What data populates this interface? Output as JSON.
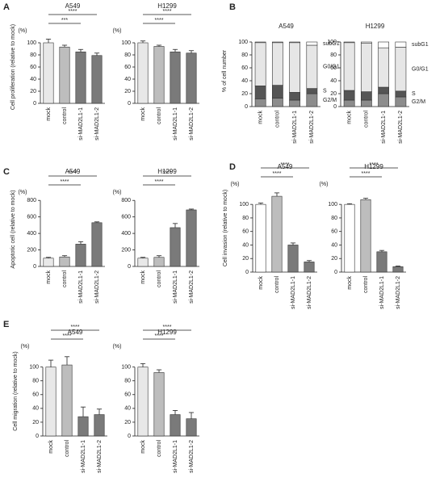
{
  "panels": [
    "A",
    "B",
    "C",
    "D",
    "E"
  ],
  "chart_data": [
    {
      "type": "bar",
      "title": "A549",
      "unit": "(%)",
      "ylabel": "Cell proliferation (relative to mock)",
      "categories": [
        "mock",
        "control",
        "si-MAD2L1-1",
        "si-MAD2L1-2"
      ],
      "values": [
        100,
        93,
        85,
        79
      ],
      "errors": [
        6,
        3,
        4,
        4
      ],
      "colors": [
        "#e8e8e8",
        "#bdbdbd",
        "#7a7a7a",
        "#7a7a7a"
      ],
      "ylim": [
        0,
        120
      ],
      "yticks": [
        0,
        20,
        40,
        60,
        80,
        100
      ],
      "significance": [
        {
          "from": "mock",
          "to": "si-MAD2L1-1",
          "label": "***"
        },
        {
          "from": "mock",
          "to": "si-MAD2L1-2",
          "label": "****"
        }
      ]
    },
    {
      "type": "bar",
      "title": "H1299",
      "unit": "(%)",
      "categories": [
        "mock",
        "control",
        "si-MAD2L1-1",
        "si-MAD2L1-2"
      ],
      "values": [
        100,
        94,
        85,
        83
      ],
      "errors": [
        3,
        2,
        4,
        4
      ],
      "colors": [
        "#e8e8e8",
        "#bdbdbd",
        "#7a7a7a",
        "#7a7a7a"
      ],
      "ylim": [
        0,
        120
      ],
      "yticks": [
        0,
        20,
        40,
        60,
        80,
        100
      ],
      "significance": [
        {
          "from": "mock",
          "to": "si-MAD2L1-1",
          "label": "****"
        },
        {
          "from": "mock",
          "to": "si-MAD2L1-2",
          "label": "****"
        }
      ]
    },
    {
      "type": "stacked_bar",
      "title": "A549",
      "ylabel": "% of cell number",
      "categories": [
        "mock",
        "control",
        "si-MAD2L1-1",
        "si-MAD2L1-2"
      ],
      "series": [
        {
          "name": "G2/M",
          "color": "#8c8c8c",
          "values": [
            12,
            13,
            10,
            20
          ]
        },
        {
          "name": "S",
          "color": "#555555",
          "values": [
            20,
            20,
            12,
            8
          ]
        },
        {
          "name": "G0/G1",
          "color": "#e6e6e6",
          "values": [
            67,
            66,
            77,
            67
          ]
        },
        {
          "name": "subG1",
          "color": "#ffffff",
          "values": [
            1,
            1,
            1,
            5
          ]
        }
      ],
      "ylim": [
        0,
        110
      ],
      "yticks": [
        0,
        20,
        40,
        60,
        80,
        100
      ]
    },
    {
      "type": "stacked_bar",
      "title": "H1299",
      "categories": [
        "mock",
        "control",
        "si-MAD2L1-1",
        "si-MAD2L1-2"
      ],
      "series": [
        {
          "name": "G2/M",
          "color": "#8c8c8c",
          "values": [
            10,
            10,
            20,
            15
          ]
        },
        {
          "name": "S",
          "color": "#555555",
          "values": [
            15,
            13,
            10,
            9
          ]
        },
        {
          "name": "G0/G1",
          "color": "#e6e6e6",
          "values": [
            74,
            75,
            61,
            68
          ]
        },
        {
          "name": "subG1",
          "color": "#ffffff",
          "values": [
            1,
            2,
            9,
            8
          ]
        }
      ],
      "ylim": [
        0,
        110
      ],
      "yticks": [
        0,
        20,
        40,
        60,
        80,
        100
      ]
    },
    {
      "type": "bar",
      "title": "A549",
      "unit": "(%)",
      "ylabel": "Apoptotic cell (relative to mock)",
      "categories": [
        "mock",
        "control",
        "si-MAD2L1-1",
        "si-MAD2L1-2"
      ],
      "values": [
        100,
        115,
        270,
        530
      ],
      "errors": [
        10,
        15,
        30,
        10
      ],
      "colors": [
        "#e8e8e8",
        "#bdbdbd",
        "#7a7a7a",
        "#7a7a7a"
      ],
      "ylim": [
        0,
        900
      ],
      "yticks": [
        0,
        200,
        400,
        600,
        800
      ],
      "significance": [
        {
          "from": "mock",
          "to": "si-MAD2L1-1",
          "label": "****"
        },
        {
          "from": "mock",
          "to": "si-MAD2L1-2",
          "label": "****"
        }
      ]
    },
    {
      "type": "bar",
      "title": "H1299",
      "unit": "(%)",
      "categories": [
        "mock",
        "control",
        "si-MAD2L1-1",
        "si-MAD2L1-2"
      ],
      "values": [
        100,
        110,
        470,
        685
      ],
      "errors": [
        10,
        20,
        50,
        10
      ],
      "colors": [
        "#e8e8e8",
        "#bdbdbd",
        "#7a7a7a",
        "#7a7a7a"
      ],
      "ylim": [
        0,
        900
      ],
      "yticks": [
        0,
        200,
        400,
        600,
        800
      ],
      "significance": [
        {
          "from": "mock",
          "to": "si-MAD2L1-1",
          "label": "****"
        },
        {
          "from": "mock",
          "to": "si-MAD2L1-2",
          "label": "****"
        }
      ]
    },
    {
      "type": "bar",
      "title": "A549",
      "unit": "(%)",
      "ylabel": "Cell invasion (relative to mock)",
      "categories": [
        "mock",
        "control",
        "si-MAD2L1-1",
        "si-MAD2L1-2"
      ],
      "values": [
        100,
        112,
        40,
        15
      ],
      "errors": [
        2,
        5,
        3,
        2
      ],
      "colors": [
        "#ffffff",
        "#bdbdbd",
        "#7a7a7a",
        "#7a7a7a"
      ],
      "ylim": [
        0,
        130
      ],
      "yticks": [
        0,
        20,
        40,
        60,
        80,
        100
      ],
      "significance": [
        {
          "from": "mock",
          "to": "si-MAD2L1-1",
          "label": "****"
        },
        {
          "from": "mock",
          "to": "si-MAD2L1-2",
          "label": "****"
        }
      ]
    },
    {
      "type": "bar",
      "title": "H1299",
      "unit": "(%)",
      "categories": [
        "mock",
        "control",
        "si-MAD2L1-1",
        "si-MAD2L1-2"
      ],
      "values": [
        100,
        107,
        30,
        8
      ],
      "errors": [
        1,
        2,
        2,
        1
      ],
      "colors": [
        "#ffffff",
        "#bdbdbd",
        "#7a7a7a",
        "#7a7a7a"
      ],
      "ylim": [
        0,
        130
      ],
      "yticks": [
        0,
        20,
        40,
        60,
        80,
        100
      ],
      "significance": [
        {
          "from": "mock",
          "to": "si-MAD2L1-1",
          "label": "****"
        },
        {
          "from": "mock",
          "to": "si-MAD2L1-2",
          "label": "****"
        }
      ]
    },
    {
      "type": "bar",
      "title": "A549",
      "unit": "(%)",
      "ylabel": "Cell migration (relative to mock)",
      "categories": [
        "mock",
        "control",
        "si-MAD2L1-1",
        "si-MAD2L1-2"
      ],
      "values": [
        100,
        103,
        28,
        31
      ],
      "errors": [
        10,
        12,
        14,
        8
      ],
      "colors": [
        "#e8e8e8",
        "#bdbdbd",
        "#7a7a7a",
        "#7a7a7a"
      ],
      "ylim": [
        0,
        130
      ],
      "yticks": [
        0,
        20,
        40,
        60,
        80,
        100
      ],
      "significance": [
        {
          "from": "mock",
          "to": "si-MAD2L1-1",
          "label": "****"
        },
        {
          "from": "mock",
          "to": "si-MAD2L1-2",
          "label": "****"
        }
      ]
    },
    {
      "type": "bar",
      "title": "H1299",
      "unit": "(%)",
      "categories": [
        "mock",
        "control",
        "si-MAD2L1-1",
        "si-MAD2L1-2"
      ],
      "values": [
        100,
        92,
        31,
        25
      ],
      "errors": [
        5,
        4,
        6,
        9
      ],
      "colors": [
        "#e8e8e8",
        "#bdbdbd",
        "#7a7a7a",
        "#7a7a7a"
      ],
      "ylim": [
        0,
        130
      ],
      "yticks": [
        0,
        20,
        40,
        60,
        80,
        100
      ],
      "significance": [
        {
          "from": "mock",
          "to": "si-MAD2L1-1",
          "label": "****"
        },
        {
          "from": "mock",
          "to": "si-MAD2L1-2",
          "label": "****"
        }
      ]
    }
  ]
}
